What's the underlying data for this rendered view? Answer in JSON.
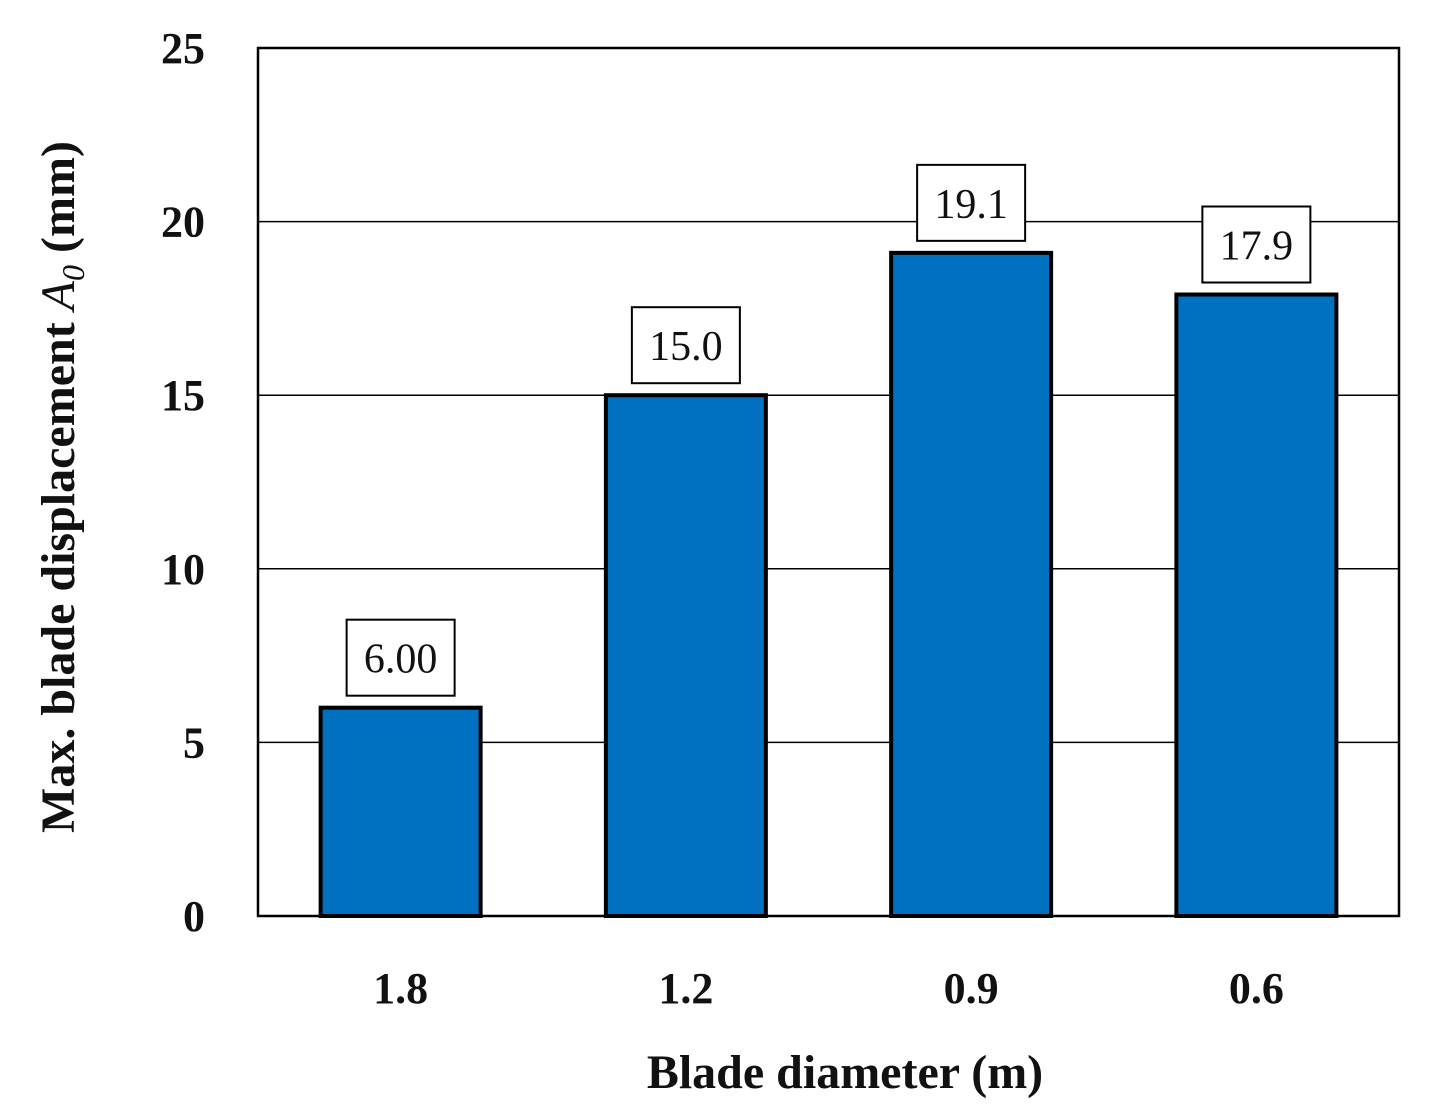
{
  "chart_data": {
    "type": "bar",
    "categories": [
      "1.8",
      "1.2",
      "0.9",
      "0.6"
    ],
    "values": [
      6.0,
      15.0,
      19.1,
      17.9
    ],
    "data_labels": [
      "6.00",
      "15.0",
      "19.1",
      "17.9"
    ],
    "xlabel": "Blade diameter (m)",
    "ylabel": {
      "prefix": "Max. blade displacement ",
      "symbol": "A",
      "subscript": "0",
      "suffix": " (mm)"
    },
    "ylim": [
      0,
      25
    ],
    "yticks": [
      "0",
      "5",
      "10",
      "15",
      "20",
      "25"
    ],
    "grid": true,
    "legend": "none",
    "bar_color": "#0070C0",
    "bar_edge_color": "#000000"
  }
}
